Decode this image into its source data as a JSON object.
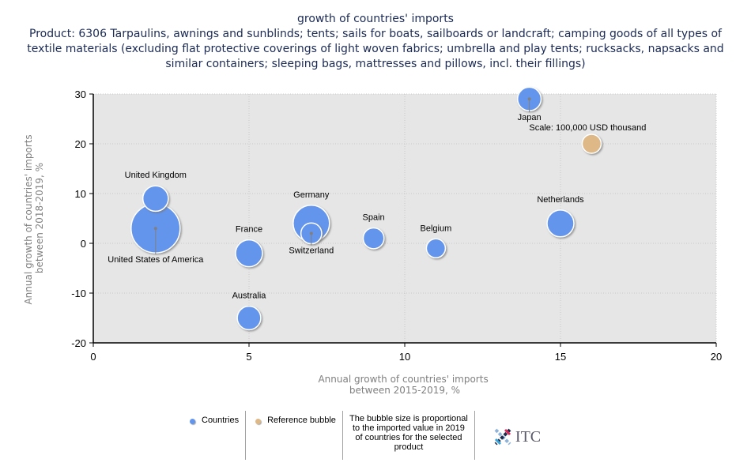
{
  "chart_data": {
    "type": "scatter",
    "subtype": "bubble",
    "title": "growth of countries' imports",
    "subtitle": "Product: 6306 Tarpaulins, awnings and sunblinds; tents; sails for boats, sailboards or landcraft; camping goods of all types of textile materials (excluding flat protective coverings of light woven fabrics; umbrella and play tents; rucksacks, napsacks and similar containers; sleeping bags, mattresses and pillows, incl. their fillings)",
    "xlabel": "Annual growth of countries' imports between 2015-2019, %",
    "ylabel": "Annual growth of countries' imports between 2018-2019, %",
    "xlabel_lines": [
      "Annual growth of countries' imports",
      "between 2015-2019, %"
    ],
    "ylabel_lines": [
      "Annual growth of countries' imports",
      "between 2018-2019, %"
    ],
    "xlim": [
      0,
      20
    ],
    "ylim": [
      -20,
      30
    ],
    "xticks": [
      0,
      5,
      10,
      15,
      20
    ],
    "yticks": [
      -20,
      -10,
      0,
      10,
      20,
      30
    ],
    "grid": true,
    "series": [
      {
        "name": "Countries",
        "color": "#6495ed",
        "points": [
          {
            "label": "United States of America",
            "x": 2,
            "y": 3,
            "size": 1.0,
            "label_pos": "below"
          },
          {
            "label": "United Kingdom",
            "x": 2,
            "y": 9,
            "size": 0.27,
            "label_pos": "above"
          },
          {
            "label": "France",
            "x": 5,
            "y": -2,
            "size": 0.3,
            "label_pos": "above"
          },
          {
            "label": "Australia",
            "x": 5,
            "y": -15,
            "size": 0.23,
            "label_pos": "above"
          },
          {
            "label": "Germany",
            "x": 7,
            "y": 4,
            "size": 0.55,
            "label_pos": "above"
          },
          {
            "label": "Switzerland",
            "x": 7,
            "y": 2,
            "size": 0.18,
            "label_pos": "below"
          },
          {
            "label": "Spain",
            "x": 9,
            "y": 1,
            "size": 0.18,
            "label_pos": "above"
          },
          {
            "label": "Belgium",
            "x": 11,
            "y": -1,
            "size": 0.15,
            "label_pos": "above"
          },
          {
            "label": "Netherlands",
            "x": 15,
            "y": 4,
            "size": 0.3,
            "label_pos": "above"
          },
          {
            "label": "Japan",
            "x": 14,
            "y": 29,
            "size": 0.23,
            "label_pos": "below"
          }
        ]
      },
      {
        "name": "Reference bubble",
        "color": "#deb887",
        "points": [
          {
            "label": "Scale: 100,000 USD thousand",
            "x": 16,
            "y": 20,
            "size": 0.15,
            "label_pos": "above"
          }
        ]
      }
    ],
    "legend": {
      "position": "bottom",
      "entries": [
        "Countries",
        "Reference bubble"
      ],
      "note": "The bubble size is proportional to the imported value in 2019 of countries for the selected product"
    }
  },
  "branding": {
    "logo_text": "ITC",
    "logo_icon": "itc-cross-logo-icon"
  }
}
